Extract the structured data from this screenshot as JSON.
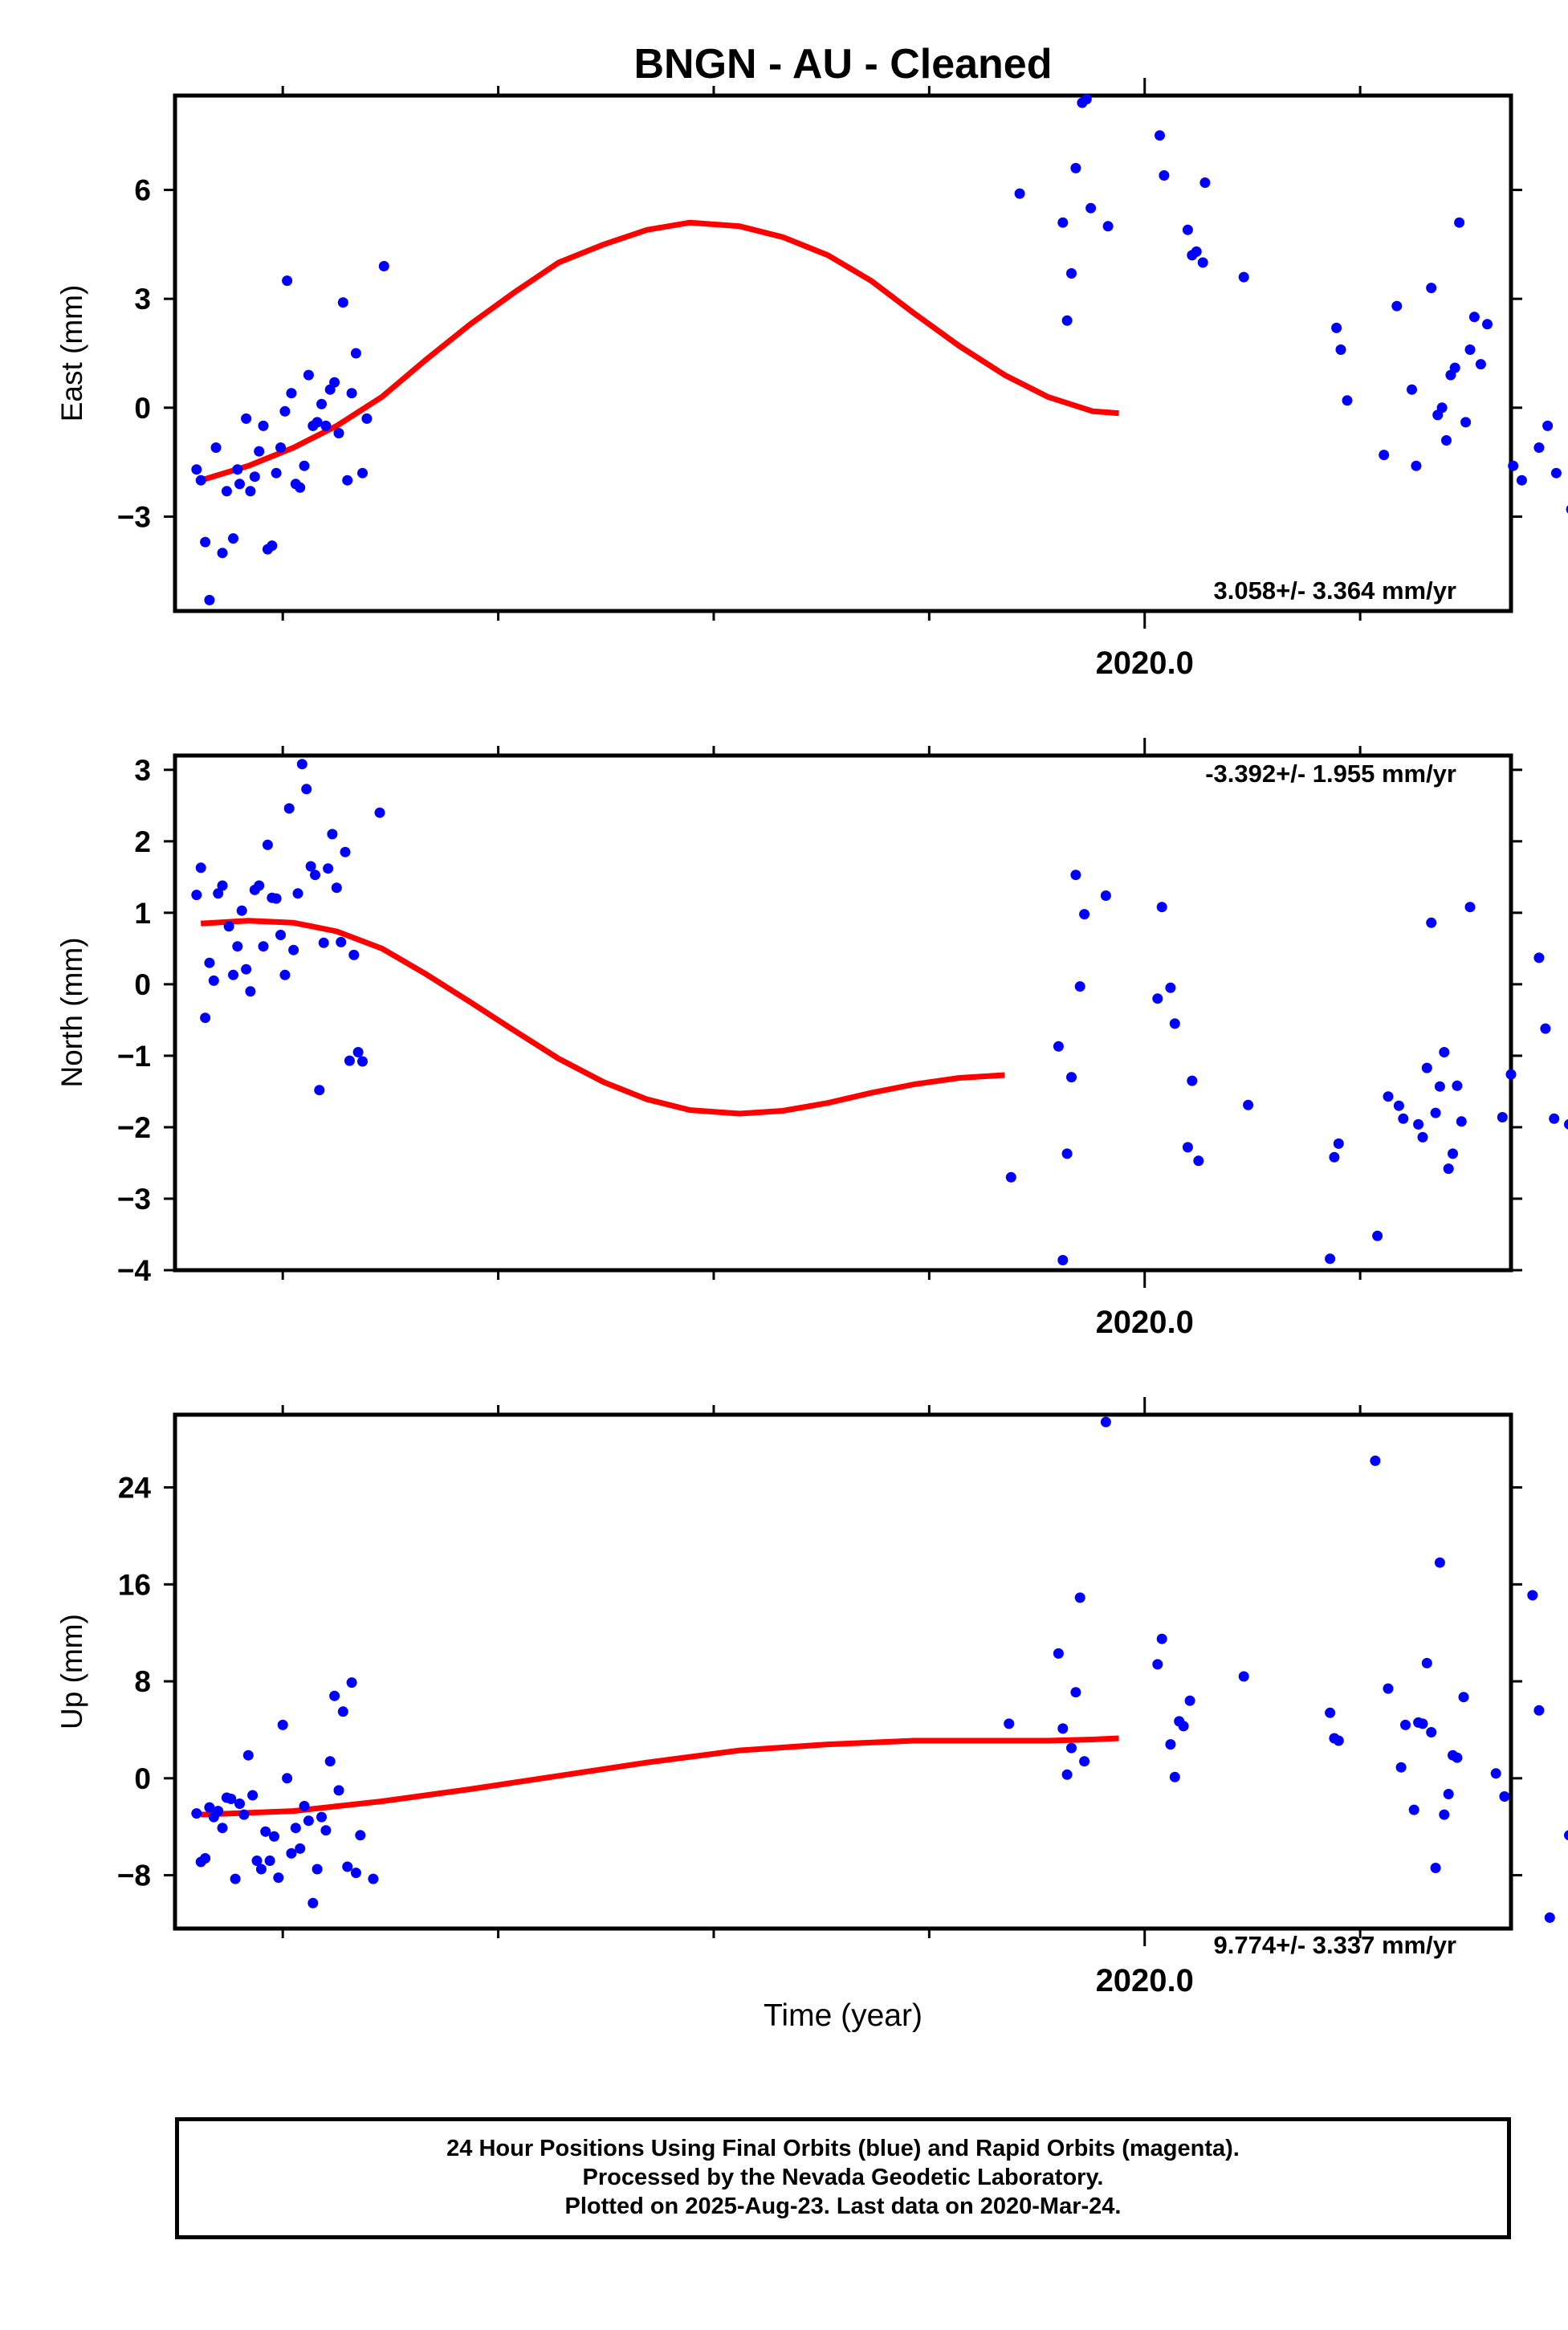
{
  "title": "BNGN  - AU - Cleaned",
  "xlabel": "Time (year)",
  "footer": {
    "line1": "24 Hour Positions Using Final Orbits (blue) and Rapid Orbits (magenta).",
    "line2": "Processed by the Nevada Geodetic Laboratory.",
    "line3": "Plotted on 2025-Aug-23. Last data on 2020-Mar-24."
  },
  "colors": {
    "points": "#0000ff",
    "fit": "#ff0000",
    "frame": "#000000"
  },
  "chart_data": [
    {
      "type": "scatter",
      "panel": "east",
      "ylabel": "East (mm)",
      "rate": "3.058+/- 3.364 mm/yr",
      "rate_position": "bottom-right",
      "xlim": [
        2015.5,
        2021.7
      ],
      "ylim": [
        -5.6,
        8.6
      ],
      "xticks": [
        2020.0
      ],
      "xticklabels": [
        "2020.0"
      ],
      "yticks": [
        -3,
        0,
        3,
        6
      ],
      "yticklabels": [
        "−3",
        "0",
        "3",
        "6"
      ],
      "points": [
        [
          2015.6,
          -1.7
        ],
        [
          2015.62,
          -2.0
        ],
        [
          2015.64,
          -3.7
        ],
        [
          2015.66,
          -5.3
        ],
        [
          2015.69,
          -1.1
        ],
        [
          2015.72,
          -4.0
        ],
        [
          2015.74,
          -2.3
        ],
        [
          2015.77,
          -3.6
        ],
        [
          2015.79,
          -1.7
        ],
        [
          2015.8,
          -2.1
        ],
        [
          2015.83,
          -0.3
        ],
        [
          2015.85,
          -2.3
        ],
        [
          2015.87,
          -1.9
        ],
        [
          2015.89,
          -1.2
        ],
        [
          2015.91,
          -0.5
        ],
        [
          2015.93,
          -3.9
        ],
        [
          2015.95,
          -3.8
        ],
        [
          2015.97,
          -1.8
        ],
        [
          2015.99,
          -1.1
        ],
        [
          2016.01,
          -0.1
        ],
        [
          2016.02,
          3.5
        ],
        [
          2016.04,
          0.4
        ],
        [
          2016.06,
          -2.1
        ],
        [
          2016.08,
          -2.2
        ],
        [
          2016.1,
          -1.6
        ],
        [
          2016.12,
          0.9
        ],
        [
          2016.14,
          -0.5
        ],
        [
          2016.16,
          -0.4
        ],
        [
          2016.18,
          0.1
        ],
        [
          2016.2,
          -0.5
        ],
        [
          2016.22,
          0.5
        ],
        [
          2016.24,
          0.7
        ],
        [
          2016.26,
          -0.7
        ],
        [
          2016.28,
          2.9
        ],
        [
          2016.3,
          -2.0
        ],
        [
          2016.32,
          0.4
        ],
        [
          2016.34,
          1.5
        ],
        [
          2016.37,
          -1.8
        ],
        [
          2016.39,
          -0.3
        ],
        [
          2016.47,
          3.9
        ],
        [
          2019.42,
          5.9
        ],
        [
          2019.62,
          5.1
        ],
        [
          2019.64,
          2.4
        ],
        [
          2019.66,
          3.7
        ],
        [
          2019.68,
          6.6
        ],
        [
          2019.71,
          8.4
        ],
        [
          2019.73,
          8.5
        ],
        [
          2019.75,
          5.5
        ],
        [
          2019.83,
          5.0
        ],
        [
          2020.07,
          7.5
        ],
        [
          2020.09,
          6.4
        ],
        [
          2020.2,
          4.9
        ],
        [
          2020.22,
          4.2
        ],
        [
          2020.24,
          4.3
        ],
        [
          2020.27,
          4.0
        ],
        [
          2020.28,
          6.2
        ],
        [
          2020.46,
          3.6
        ],
        [
          2020.89,
          2.2
        ],
        [
          2020.91,
          1.6
        ],
        [
          2020.94,
          0.2
        ],
        [
          2021.11,
          -1.3
        ],
        [
          2021.17,
          2.8
        ],
        [
          2021.24,
          0.5
        ],
        [
          2021.26,
          -1.6
        ],
        [
          2021.33,
          3.3
        ],
        [
          2021.36,
          -0.2
        ],
        [
          2021.38,
          0.0
        ],
        [
          2021.4,
          -0.9
        ],
        [
          2021.42,
          0.9
        ],
        [
          2021.44,
          1.1
        ],
        [
          2021.46,
          5.1
        ],
        [
          2021.49,
          -0.4
        ],
        [
          2021.51,
          1.6
        ],
        [
          2021.53,
          2.5
        ],
        [
          2021.56,
          1.2
        ],
        [
          2021.59,
          2.3
        ],
        [
          2021.71,
          -1.6
        ],
        [
          2021.75,
          -2.0
        ],
        [
          2021.83,
          -1.1
        ],
        [
          2021.87,
          -0.5
        ],
        [
          2021.91,
          -1.8
        ],
        [
          2021.98,
          -2.8
        ]
      ],
      "fit": [
        [
          2015.62,
          -2.0
        ],
        [
          2015.84,
          -1.6
        ],
        [
          2016.05,
          -1.1
        ],
        [
          2016.25,
          -0.5
        ],
        [
          2016.46,
          0.3
        ],
        [
          2016.66,
          1.3
        ],
        [
          2016.87,
          2.3
        ],
        [
          2017.08,
          3.2
        ],
        [
          2017.28,
          4.0
        ],
        [
          2017.49,
          4.5
        ],
        [
          2017.69,
          4.9
        ],
        [
          2017.89,
          5.1
        ],
        [
          2018.12,
          5.0
        ],
        [
          2018.32,
          4.7
        ],
        [
          2018.53,
          4.2
        ],
        [
          2018.73,
          3.5
        ],
        [
          2018.93,
          2.6
        ],
        [
          2019.14,
          1.7
        ],
        [
          2019.35,
          0.9
        ],
        [
          2019.55,
          0.3
        ],
        [
          2019.76,
          -0.1
        ],
        [
          2019.88,
          -0.15
        ]
      ]
    },
    {
      "type": "scatter",
      "panel": "north",
      "ylabel": "North (mm)",
      "rate": "-3.392+/- 1.955 mm/yr",
      "rate_position": "top-right",
      "xlim": [
        2015.5,
        2021.7
      ],
      "ylim": [
        -4.0,
        3.2
      ],
      "xticks": [
        2020.0
      ],
      "xticklabels": [
        "2020.0"
      ],
      "yticks": [
        -4,
        -3,
        -2,
        -1,
        0,
        1,
        2,
        3
      ],
      "yticklabels": [
        "−4",
        "−3",
        "−2",
        "−1",
        "0",
        "1",
        "2",
        "3"
      ],
      "points": [
        [
          2015.6,
          1.25
        ],
        [
          2015.62,
          1.63
        ],
        [
          2015.64,
          -0.47
        ],
        [
          2015.66,
          0.3
        ],
        [
          2015.68,
          0.05
        ],
        [
          2015.7,
          1.27
        ],
        [
          2015.72,
          1.38
        ],
        [
          2015.75,
          0.81
        ],
        [
          2015.77,
          0.13
        ],
        [
          2015.79,
          0.53
        ],
        [
          2015.81,
          1.03
        ],
        [
          2015.83,
          0.21
        ],
        [
          2015.85,
          -0.1
        ],
        [
          2015.87,
          1.32
        ],
        [
          2015.89,
          1.38
        ],
        [
          2015.91,
          0.53
        ],
        [
          2015.93,
          1.95
        ],
        [
          2015.95,
          1.21
        ],
        [
          2015.97,
          1.2
        ],
        [
          2015.99,
          0.69
        ],
        [
          2016.01,
          0.13
        ],
        [
          2016.03,
          2.46
        ],
        [
          2016.05,
          0.48
        ],
        [
          2016.07,
          1.27
        ],
        [
          2016.09,
          3.08
        ],
        [
          2016.11,
          2.73
        ],
        [
          2016.13,
          1.65
        ],
        [
          2016.15,
          1.53
        ],
        [
          2016.17,
          -1.48
        ],
        [
          2016.19,
          0.58
        ],
        [
          2016.21,
          1.62
        ],
        [
          2016.23,
          2.1
        ],
        [
          2016.25,
          1.35
        ],
        [
          2016.27,
          0.59
        ],
        [
          2016.29,
          1.85
        ],
        [
          2016.31,
          -1.07
        ],
        [
          2016.33,
          0.41
        ],
        [
          2016.35,
          -0.95
        ],
        [
          2016.37,
          -1.08
        ],
        [
          2016.45,
          2.4
        ],
        [
          2019.38,
          -2.7
        ],
        [
          2019.6,
          -0.87
        ],
        [
          2019.62,
          -3.86
        ],
        [
          2019.64,
          -2.37
        ],
        [
          2019.66,
          -1.3
        ],
        [
          2019.68,
          1.53
        ],
        [
          2019.7,
          -0.03
        ],
        [
          2019.72,
          0.98
        ],
        [
          2019.82,
          1.24
        ],
        [
          2020.06,
          -0.2
        ],
        [
          2020.08,
          1.08
        ],
        [
          2020.12,
          -0.05
        ],
        [
          2020.14,
          -0.55
        ],
        [
          2020.2,
          -2.28
        ],
        [
          2020.22,
          -1.35
        ],
        [
          2020.25,
          -2.47
        ],
        [
          2020.48,
          -1.69
        ],
        [
          2020.86,
          -3.84
        ],
        [
          2020.88,
          -2.42
        ],
        [
          2020.9,
          -2.23
        ],
        [
          2021.08,
          -3.52
        ],
        [
          2021.13,
          -1.57
        ],
        [
          2021.18,
          -1.7
        ],
        [
          2021.2,
          -1.88
        ],
        [
          2021.27,
          -1.96
        ],
        [
          2021.29,
          -2.14
        ],
        [
          2021.31,
          -1.17
        ],
        [
          2021.33,
          0.86
        ],
        [
          2021.35,
          -1.8
        ],
        [
          2021.37,
          -1.43
        ],
        [
          2021.39,
          -0.95
        ],
        [
          2021.41,
          -2.58
        ],
        [
          2021.43,
          -2.37
        ],
        [
          2021.45,
          -1.42
        ],
        [
          2021.47,
          -1.92
        ],
        [
          2021.51,
          1.08
        ],
        [
          2021.66,
          -1.86
        ],
        [
          2021.7,
          -1.26
        ],
        [
          2021.83,
          0.37
        ],
        [
          2021.86,
          -0.62
        ],
        [
          2021.9,
          -1.88
        ],
        [
          2021.97,
          -1.96
        ]
      ],
      "fit": [
        [
          2015.62,
          0.85
        ],
        [
          2015.84,
          0.89
        ],
        [
          2016.05,
          0.86
        ],
        [
          2016.25,
          0.74
        ],
        [
          2016.46,
          0.5
        ],
        [
          2016.66,
          0.15
        ],
        [
          2016.87,
          -0.25
        ],
        [
          2017.08,
          -0.66
        ],
        [
          2017.28,
          -1.04
        ],
        [
          2017.49,
          -1.37
        ],
        [
          2017.69,
          -1.61
        ],
        [
          2017.89,
          -1.76
        ],
        [
          2018.12,
          -1.81
        ],
        [
          2018.32,
          -1.77
        ],
        [
          2018.53,
          -1.66
        ],
        [
          2018.73,
          -1.52
        ],
        [
          2018.93,
          -1.4
        ],
        [
          2019.14,
          -1.31
        ],
        [
          2019.35,
          -1.27
        ]
      ]
    },
    {
      "type": "scatter",
      "panel": "up",
      "ylabel": "Up (mm)",
      "rate": "9.774+/- 3.337 mm/yr",
      "rate_position": "bottom-right",
      "xlim": [
        2015.5,
        2021.7
      ],
      "ylim": [
        -12.4,
        30.0
      ],
      "xticks": [
        2020.0
      ],
      "xticklabels": [
        "2020.0"
      ],
      "yticks": [
        -8,
        0,
        8,
        16,
        24
      ],
      "yticklabels": [
        "−8",
        "0",
        "8",
        "16",
        "24"
      ],
      "points": [
        [
          2015.6,
          -2.9
        ],
        [
          2015.62,
          -6.9
        ],
        [
          2015.64,
          -6.6
        ],
        [
          2015.66,
          -2.4
        ],
        [
          2015.68,
          -3.2
        ],
        [
          2015.7,
          -2.7
        ],
        [
          2015.72,
          -4.1
        ],
        [
          2015.74,
          -1.6
        ],
        [
          2015.76,
          -1.7
        ],
        [
          2015.78,
          -8.3
        ],
        [
          2015.8,
          -2.1
        ],
        [
          2015.82,
          -3.0
        ],
        [
          2015.84,
          1.9
        ],
        [
          2015.86,
          -1.4
        ],
        [
          2015.88,
          -6.8
        ],
        [
          2015.9,
          -7.5
        ],
        [
          2015.92,
          -4.4
        ],
        [
          2015.94,
          -6.8
        ],
        [
          2015.96,
          -4.8
        ],
        [
          2015.98,
          -8.2
        ],
        [
          2016.0,
          4.4
        ],
        [
          2016.02,
          0.0
        ],
        [
          2016.04,
          -6.2
        ],
        [
          2016.06,
          -4.1
        ],
        [
          2016.08,
          -5.8
        ],
        [
          2016.1,
          -2.3
        ],
        [
          2016.12,
          -3.5
        ],
        [
          2016.14,
          -10.3
        ],
        [
          2016.16,
          -7.5
        ],
        [
          2016.18,
          -3.2
        ],
        [
          2016.2,
          -4.3
        ],
        [
          2016.22,
          1.4
        ],
        [
          2016.24,
          6.8
        ],
        [
          2016.26,
          -1.0
        ],
        [
          2016.28,
          5.5
        ],
        [
          2016.3,
          -7.3
        ],
        [
          2016.32,
          7.9
        ],
        [
          2016.34,
          -7.8
        ],
        [
          2016.36,
          -4.7
        ],
        [
          2016.42,
          -8.3
        ],
        [
          2019.37,
          4.5
        ],
        [
          2019.6,
          10.3
        ],
        [
          2019.62,
          4.1
        ],
        [
          2019.64,
          0.3
        ],
        [
          2019.66,
          2.5
        ],
        [
          2019.68,
          7.1
        ],
        [
          2019.7,
          14.9
        ],
        [
          2019.72,
          1.4
        ],
        [
          2019.82,
          29.4
        ],
        [
          2020.06,
          9.4
        ],
        [
          2020.08,
          11.5
        ],
        [
          2020.12,
          2.8
        ],
        [
          2020.14,
          0.1
        ],
        [
          2020.16,
          4.7
        ],
        [
          2020.18,
          4.3
        ],
        [
          2020.21,
          6.4
        ],
        [
          2020.46,
          8.4
        ],
        [
          2020.86,
          5.4
        ],
        [
          2020.88,
          3.3
        ],
        [
          2020.9,
          3.1
        ],
        [
          2021.07,
          26.2
        ],
        [
          2021.13,
          7.4
        ],
        [
          2021.19,
          0.9
        ],
        [
          2021.21,
          4.4
        ],
        [
          2021.25,
          -2.6
        ],
        [
          2021.27,
          4.6
        ],
        [
          2021.29,
          4.5
        ],
        [
          2021.31,
          9.5
        ],
        [
          2021.33,
          3.8
        ],
        [
          2021.35,
          -7.4
        ],
        [
          2021.37,
          17.8
        ],
        [
          2021.39,
          -3.0
        ],
        [
          2021.41,
          -1.3
        ],
        [
          2021.43,
          1.9
        ],
        [
          2021.45,
          1.7
        ],
        [
          2021.48,
          6.7
        ],
        [
          2021.63,
          0.4
        ],
        [
          2021.67,
          -1.5
        ],
        [
          2021.8,
          15.1
        ],
        [
          2021.83,
          5.6
        ],
        [
          2021.88,
          -11.5
        ],
        [
          2021.97,
          -4.7
        ]
      ],
      "fit": [
        [
          2015.62,
          -3.0
        ],
        [
          2016.05,
          -2.7
        ],
        [
          2016.46,
          -1.9
        ],
        [
          2016.87,
          -0.9
        ],
        [
          2017.28,
          0.2
        ],
        [
          2017.69,
          1.3
        ],
        [
          2018.12,
          2.3
        ],
        [
          2018.53,
          2.8
        ],
        [
          2018.93,
          3.1
        ],
        [
          2019.35,
          3.1
        ],
        [
          2019.55,
          3.1
        ],
        [
          2019.76,
          3.2
        ],
        [
          2019.88,
          3.3
        ]
      ]
    }
  ]
}
